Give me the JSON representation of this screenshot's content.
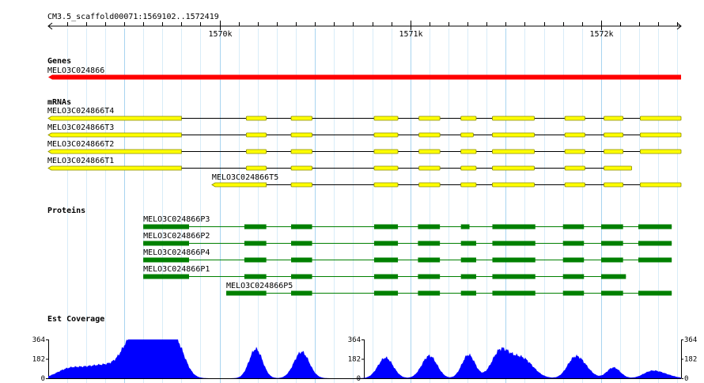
{
  "ruler": {
    "region_label": "CM3.5_scaffold00071:1569102..1572419",
    "start": 1569102,
    "end": 1572419,
    "ticks": [
      {
        "pos": 1570000,
        "label": "1570k"
      },
      {
        "pos": 1571000,
        "label": "1571k"
      },
      {
        "pos": 1572000,
        "label": "1572k"
      }
    ]
  },
  "colors": {
    "gene": "#ff0000",
    "mrna_fill": "#ffff00",
    "mrna_stroke": "#8b8b00",
    "protein": "#008000",
    "coverage": "#0000ff",
    "grid_major": "#a8d4f0",
    "grid_minor": "#d8ecf8"
  },
  "tracks": {
    "genes": {
      "title": "Genes",
      "items": [
        {
          "name": "MELO3C024866",
          "start": 1569102,
          "end": 1572419,
          "strand": "-"
        }
      ]
    },
    "mrnas": {
      "title": "mRNAs",
      "items": [
        {
          "name": "MELO3C024866T4",
          "start": 1569102,
          "end": 1572419,
          "exons": [
            [
              1569102,
              1569800
            ],
            [
              1570140,
              1570245
            ],
            [
              1570375,
              1570485
            ],
            [
              1570810,
              1570935
            ],
            [
              1571045,
              1571155
            ],
            [
              1571265,
              1571345
            ],
            [
              1571430,
              1571650
            ],
            [
              1571810,
              1571915
            ],
            [
              1572015,
              1572115
            ],
            [
              1572205,
              1572419
            ]
          ]
        },
        {
          "name": "MELO3C024866T3",
          "start": 1569102,
          "end": 1572419,
          "exons": [
            [
              1569102,
              1569800
            ],
            [
              1570140,
              1570245
            ],
            [
              1570375,
              1570485
            ],
            [
              1570810,
              1570935
            ],
            [
              1571045,
              1571155
            ],
            [
              1571265,
              1571330
            ],
            [
              1571430,
              1571650
            ],
            [
              1571810,
              1571915
            ],
            [
              1572015,
              1572115
            ],
            [
              1572205,
              1572419
            ]
          ]
        },
        {
          "name": "MELO3C024866T2",
          "start": 1569102,
          "end": 1572419,
          "exons": [
            [
              1569102,
              1569800
            ],
            [
              1570140,
              1570245
            ],
            [
              1570375,
              1570485
            ],
            [
              1570810,
              1570935
            ],
            [
              1571045,
              1571155
            ],
            [
              1571265,
              1571345
            ],
            [
              1571430,
              1571650
            ],
            [
              1571810,
              1571915
            ],
            [
              1572015,
              1572115
            ],
            [
              1572205,
              1572419
            ]
          ]
        },
        {
          "name": "MELO3C024866T1",
          "start": 1569102,
          "end": 1572160,
          "exons": [
            [
              1569102,
              1569800
            ],
            [
              1570140,
              1570245
            ],
            [
              1570375,
              1570485
            ],
            [
              1570810,
              1570935
            ],
            [
              1571045,
              1571155
            ],
            [
              1571265,
              1571345
            ],
            [
              1571430,
              1571650
            ],
            [
              1571810,
              1571915
            ],
            [
              1572015,
              1572160
            ]
          ]
        },
        {
          "name": "MELO3C024866T5",
          "start": 1569960,
          "end": 1572419,
          "exons": [
            [
              1569960,
              1570245
            ],
            [
              1570375,
              1570485
            ],
            [
              1570810,
              1570935
            ],
            [
              1571045,
              1571155
            ],
            [
              1571265,
              1571345
            ],
            [
              1571430,
              1571650
            ],
            [
              1571810,
              1571915
            ],
            [
              1572015,
              1572115
            ],
            [
              1572205,
              1572419
            ]
          ]
        }
      ]
    },
    "proteins": {
      "title": "Proteins",
      "items": [
        {
          "name": "MELO3C024866P3",
          "start": 1569600,
          "end": 1572370,
          "cds": [
            [
              1569600,
              1569840
            ],
            [
              1570130,
              1570245
            ],
            [
              1570375,
              1570485
            ],
            [
              1570810,
              1570935
            ],
            [
              1571040,
              1571155
            ],
            [
              1571265,
              1571310
            ],
            [
              1571430,
              1571655
            ],
            [
              1571800,
              1571910
            ],
            [
              1572000,
              1572115
            ],
            [
              1572195,
              1572370
            ]
          ]
        },
        {
          "name": "MELO3C024866P2",
          "start": 1569600,
          "end": 1572370,
          "cds": [
            [
              1569600,
              1569840
            ],
            [
              1570130,
              1570245
            ],
            [
              1570375,
              1570485
            ],
            [
              1570810,
              1570935
            ],
            [
              1571040,
              1571155
            ],
            [
              1571265,
              1571345
            ],
            [
              1571430,
              1571655
            ],
            [
              1571800,
              1571910
            ],
            [
              1572000,
              1572115
            ],
            [
              1572195,
              1572370
            ]
          ]
        },
        {
          "name": "MELO3C024866P4",
          "start": 1569600,
          "end": 1572370,
          "cds": [
            [
              1569600,
              1569840
            ],
            [
              1570130,
              1570245
            ],
            [
              1570375,
              1570485
            ],
            [
              1570810,
              1570935
            ],
            [
              1571040,
              1571155
            ],
            [
              1571265,
              1571345
            ],
            [
              1571430,
              1571655
            ],
            [
              1571800,
              1571910
            ],
            [
              1572000,
              1572115
            ],
            [
              1572195,
              1572370
            ]
          ]
        },
        {
          "name": "MELO3C024866P1",
          "start": 1569600,
          "end": 1572130,
          "cds": [
            [
              1569600,
              1569840
            ],
            [
              1570130,
              1570245
            ],
            [
              1570375,
              1570485
            ],
            [
              1570810,
              1570935
            ],
            [
              1571040,
              1571155
            ],
            [
              1571265,
              1571345
            ],
            [
              1571430,
              1571655
            ],
            [
              1571800,
              1571910
            ],
            [
              1572000,
              1572130
            ]
          ]
        },
        {
          "name": "MELO3C024866P5",
          "start": 1570035,
          "end": 1572370,
          "cds": [
            [
              1570035,
              1570245
            ],
            [
              1570375,
              1570485
            ],
            [
              1570810,
              1570935
            ],
            [
              1571040,
              1571155
            ],
            [
              1571265,
              1571345
            ],
            [
              1571430,
              1571655
            ],
            [
              1571800,
              1571910
            ],
            [
              1572000,
              1572115
            ],
            [
              1572195,
              1572370
            ]
          ]
        }
      ]
    },
    "coverage": {
      "title": "Est Coverage",
      "ymax": 364,
      "tick_labels": [
        "364",
        "182",
        "0"
      ],
      "peaks": [
        {
          "center": 1569200,
          "width": 60,
          "height": 70
        },
        {
          "center": 1569300,
          "width": 80,
          "height": 60
        },
        {
          "center": 1569420,
          "width": 90,
          "height": 110
        },
        {
          "center": 1569545,
          "width": 55,
          "height": 330
        },
        {
          "center": 1569630,
          "width": 60,
          "height": 250
        },
        {
          "center": 1569720,
          "width": 55,
          "height": 300
        },
        {
          "center": 1569780,
          "width": 45,
          "height": 220
        },
        {
          "center": 1570190,
          "width": 35,
          "height": 300
        },
        {
          "center": 1570430,
          "width": 40,
          "height": 270
        },
        {
          "center": 1570870,
          "width": 40,
          "height": 210
        },
        {
          "center": 1571100,
          "width": 40,
          "height": 230
        },
        {
          "center": 1571305,
          "width": 35,
          "height": 240
        },
        {
          "center": 1571470,
          "width": 45,
          "height": 260
        },
        {
          "center": 1571580,
          "width": 60,
          "height": 210
        },
        {
          "center": 1571860,
          "width": 40,
          "height": 190
        },
        {
          "center": 1571915,
          "width": 40,
          "height": 80
        },
        {
          "center": 1572065,
          "width": 35,
          "height": 110
        },
        {
          "center": 1572265,
          "width": 45,
          "height": 70
        },
        {
          "center": 1572340,
          "width": 45,
          "height": 30
        }
      ]
    }
  }
}
